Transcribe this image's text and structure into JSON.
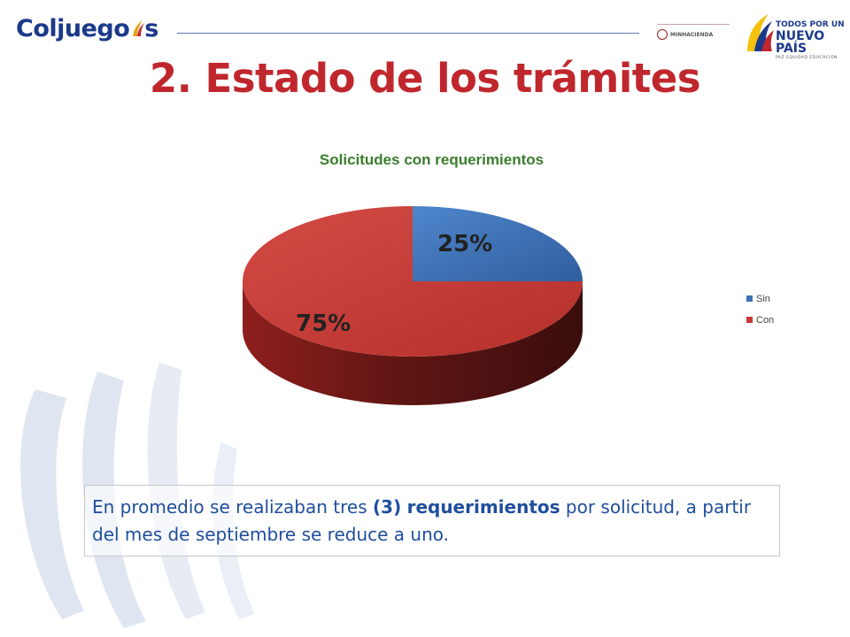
{
  "header": {
    "brand_text": "Colj",
    "brand_tail": "s",
    "brand_middle": "uego",
    "minhacienda_label": "MINHACIENDA",
    "gov_line1": "TODOS POR UN",
    "gov_line2": "NUEVO PAÍS",
    "gov_line3": "PAZ   EQUIDAD   EDUCACIÓN"
  },
  "page_title": "2. Estado de los trámites",
  "chart_data": {
    "type": "pie",
    "title": "Solicitudes con requerimientos",
    "categories": [
      "Sin",
      "Con"
    ],
    "values": [
      25,
      75
    ],
    "labels": [
      "25%",
      "75%"
    ],
    "colors": [
      "#3e73b8",
      "#c93a36"
    ],
    "legend_position": "right"
  },
  "note": {
    "part1": "En promedio se realizaban tres ",
    "bold1": "(3)",
    "part2": " ",
    "bold2": "requerimientos",
    "part3": " por solicitud, a partir del mes de septiembre se reduce a uno."
  },
  "colors": {
    "title_red": "#c0272d",
    "chart_title_green": "#3a7d2c",
    "note_blue": "#1f4e9c",
    "brand_blue": "#1b3a8a"
  }
}
